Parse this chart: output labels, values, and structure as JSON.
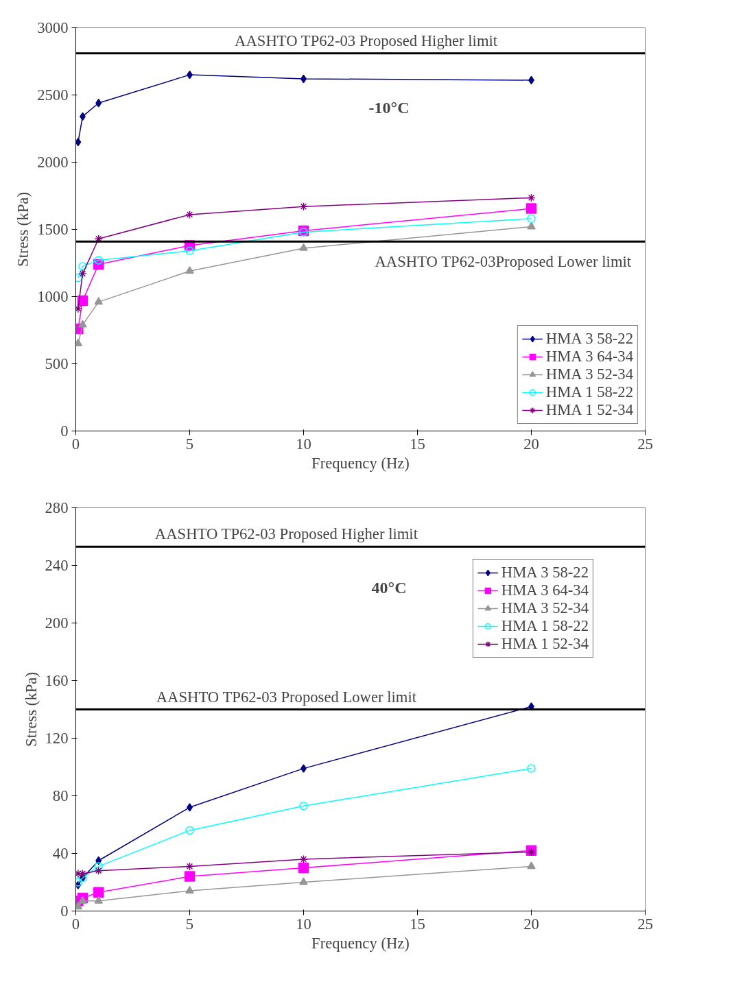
{
  "chart_data": [
    {
      "type": "line",
      "xlabel": "Frequency (Hz)",
      "ylabel": "Stress (kPa)",
      "x": [
        0.1,
        0.3,
        1,
        5,
        10,
        20
      ],
      "xlim": [
        0,
        25
      ],
      "xticks": [
        0,
        5,
        10,
        15,
        20,
        25
      ],
      "ylim": [
        0,
        3000
      ],
      "yticks": [
        0,
        500,
        1000,
        1500,
        2000,
        2500,
        3000
      ],
      "grid": false,
      "legend": "bottom right",
      "annotations": [
        "-10°C"
      ],
      "ref_lines": [
        {
          "axis": "y",
          "value": 2810,
          "label": "AASHTO TP62-03 Proposed Higher limit",
          "color": "#000000"
        },
        {
          "axis": "y",
          "value": 1410,
          "label": "AASHTO TP62-03Proposed Lower limit",
          "color": "#000000"
        }
      ],
      "series": [
        {
          "name": "HMA 3 58-22",
          "color": "#000080",
          "marker": "diamond",
          "values": [
            2150,
            2340,
            2440,
            2650,
            2620,
            2610
          ]
        },
        {
          "name": "HMA 3 64-34",
          "color": "#ff00ff",
          "marker": "square",
          "values": [
            760,
            970,
            1240,
            1380,
            1490,
            1655
          ]
        },
        {
          "name": "HMA 3 52-34",
          "color": "#969696",
          "marker": "triangle",
          "values": [
            650,
            790,
            960,
            1190,
            1360,
            1520
          ]
        },
        {
          "name": "HMA 1 58-22",
          "color": "#00ffff",
          "marker": "circle",
          "values": [
            1140,
            1225,
            1270,
            1340,
            1480,
            1580
          ]
        },
        {
          "name": "HMA 1 52-34",
          "color": "#800080",
          "marker": "cross",
          "values": [
            910,
            1170,
            1430,
            1610,
            1670,
            1735
          ]
        }
      ]
    },
    {
      "type": "line",
      "xlabel": "Frequency (Hz)",
      "ylabel": "Stress (kPa)",
      "x": [
        0.1,
        0.3,
        1,
        5,
        10,
        20
      ],
      "xlim": [
        0,
        25
      ],
      "xticks": [
        0,
        5,
        10,
        15,
        20,
        25
      ],
      "ylim": [
        0,
        280
      ],
      "yticks": [
        0,
        40,
        80,
        120,
        160,
        200,
        240,
        280
      ],
      "grid": false,
      "legend": "top right",
      "annotations": [
        "40°C"
      ],
      "ref_lines": [
        {
          "axis": "y",
          "value": 253,
          "label": "AASHTO TP62-03 Proposed Higher limit",
          "color": "#000000"
        },
        {
          "axis": "y",
          "value": 140,
          "label": "AASHTO TP62-03 Proposed Lower limit",
          "color": "#000000"
        }
      ],
      "series": [
        {
          "name": "HMA 3 58-22",
          "color": "#000080",
          "marker": "diamond",
          "values": [
            18,
            23,
            35,
            72,
            99,
            142
          ]
        },
        {
          "name": "HMA 3 64-34",
          "color": "#ff00ff",
          "marker": "square",
          "values": [
            7,
            9,
            13,
            24,
            30,
            42
          ]
        },
        {
          "name": "HMA 3 52-34",
          "color": "#969696",
          "marker": "triangle",
          "values": [
            3,
            7,
            7,
            14,
            20,
            31
          ]
        },
        {
          "name": "HMA 1 58-22",
          "color": "#00ffff",
          "marker": "circle",
          "values": [
            20,
            23,
            31,
            56,
            73,
            99
          ]
        },
        {
          "name": "HMA 1 52-34",
          "color": "#800080",
          "marker": "cross",
          "values": [
            26,
            26,
            28,
            31,
            36,
            41
          ]
        }
      ]
    }
  ]
}
